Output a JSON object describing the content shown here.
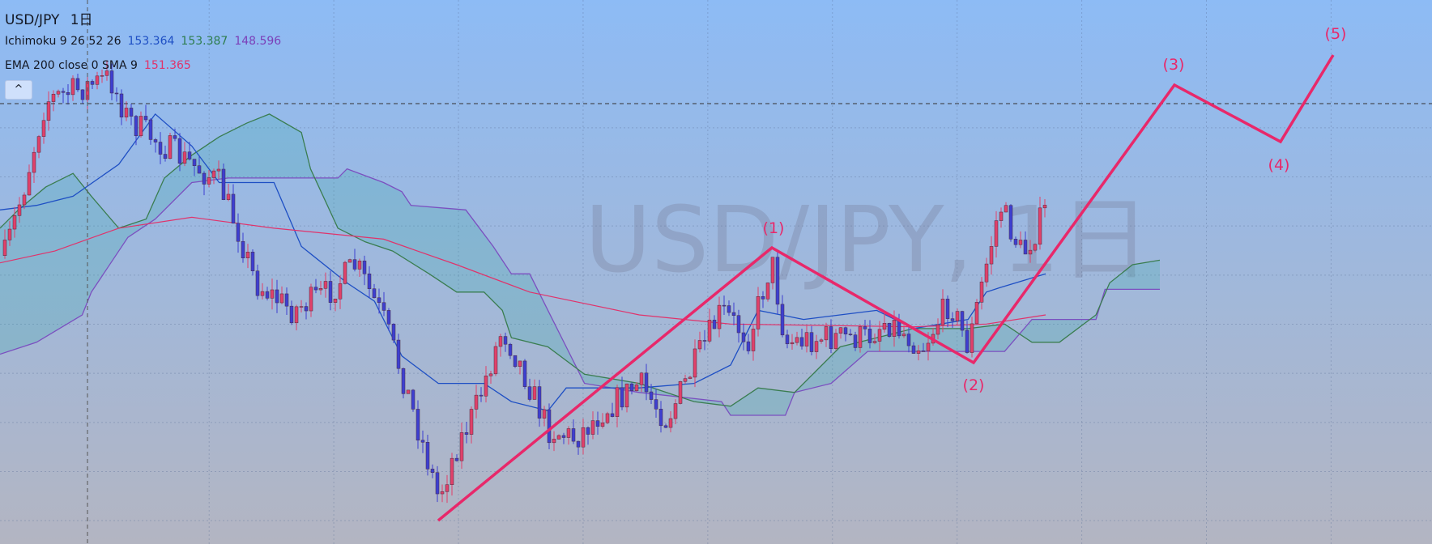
{
  "header": {
    "symbol": "USD/JPY",
    "interval": "1日"
  },
  "indicators": [
    {
      "label": "Ichimoku 9 26 52 26",
      "values": [
        {
          "text": "153.364",
          "color": "#1e4fc4"
        },
        {
          "text": "153.387",
          "color": "#2e7d4f"
        },
        {
          "text": "148.596",
          "color": "#7b3fb8"
        }
      ]
    },
    {
      "label": "EMA 200 close 0 SMA 9",
      "values": [
        {
          "text": "151.365",
          "color": "#e0336b"
        }
      ]
    }
  ],
  "watermark": "USD/JPY, 1日",
  "wave_labels": [
    "(1)",
    "(2)",
    "(3)",
    "(4)",
    "(5)"
  ]
}
